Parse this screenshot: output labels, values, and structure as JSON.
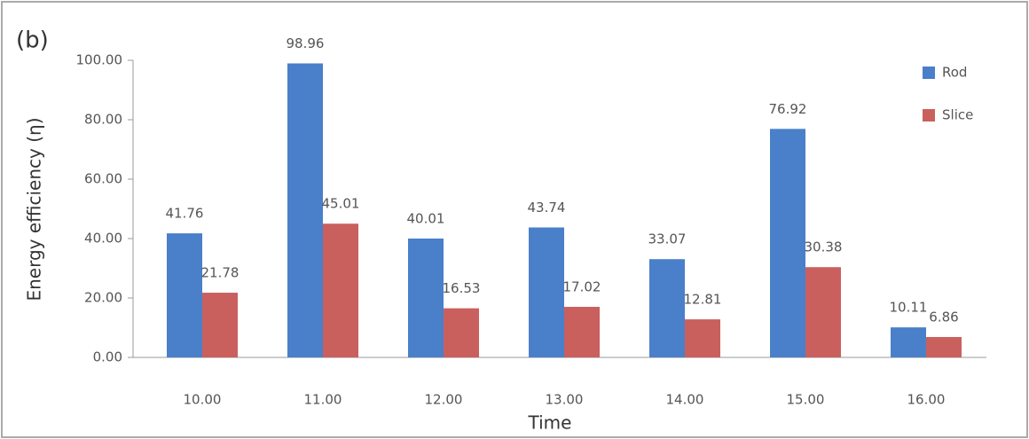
{
  "chart_data": {
    "type": "bar",
    "panel_label": "(b)",
    "x_label": "Time",
    "y_label": "Energy efficiency (η)",
    "categories": [
      "10.00",
      "11.00",
      "12.00",
      "13.00",
      "14.00",
      "15.00",
      "16.00"
    ],
    "series": [
      {
        "name": "Rod",
        "color": "#4a7fca",
        "values": [
          41.76,
          98.96,
          40.01,
          43.74,
          33.07,
          76.92,
          10.11
        ]
      },
      {
        "name": "Slice",
        "color": "#c9605e",
        "values": [
          21.78,
          45.01,
          16.53,
          17.02,
          12.81,
          30.38,
          6.86
        ]
      }
    ],
    "ylim": [
      0,
      100
    ],
    "yticks": [
      {
        "value": 0,
        "label": "0.00"
      },
      {
        "value": 20,
        "label": "20.00"
      },
      {
        "value": 40,
        "label": "40.00"
      },
      {
        "value": 60,
        "label": "60.00"
      },
      {
        "value": 80,
        "label": "80.00"
      },
      {
        "value": 100,
        "label": "100.00"
      }
    ],
    "legend": "right"
  }
}
